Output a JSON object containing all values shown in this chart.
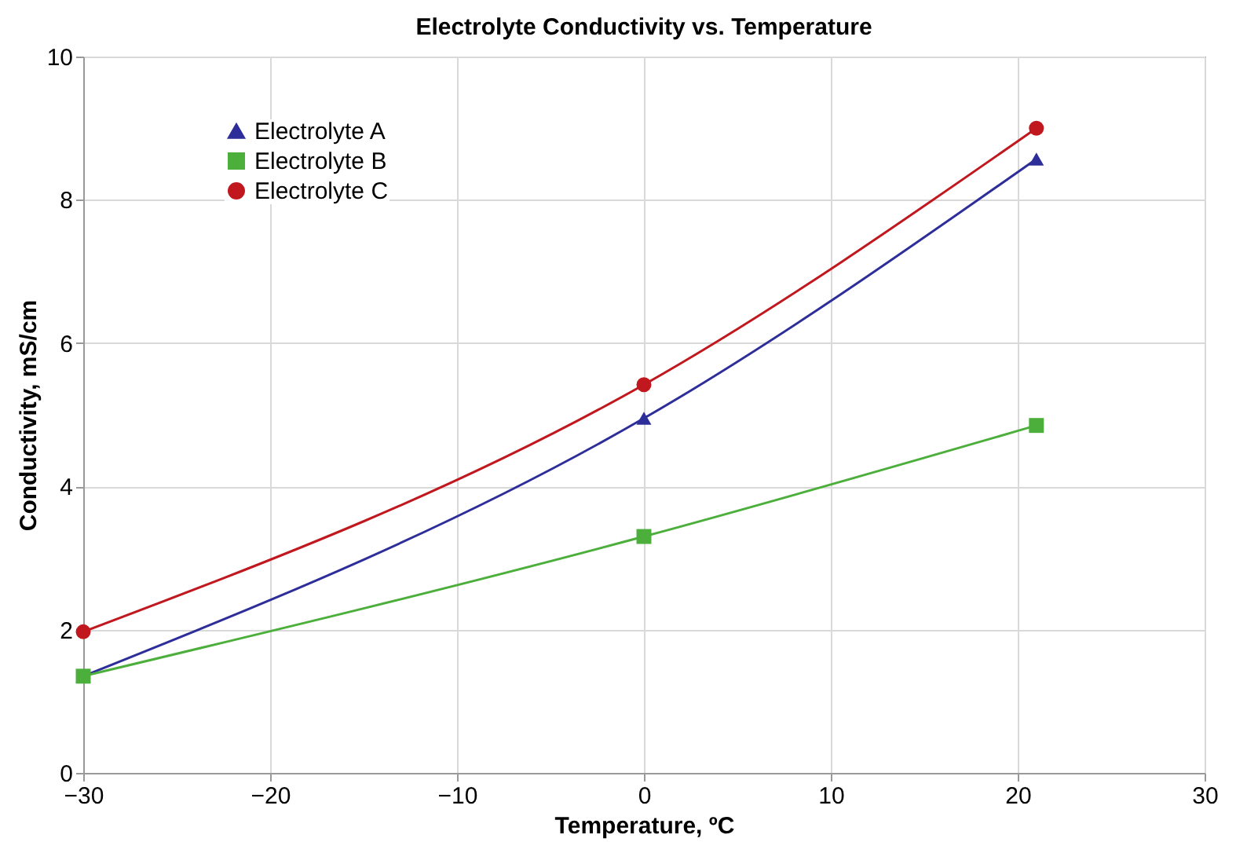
{
  "chart_data": {
    "type": "line",
    "title": "Electrolyte Conductivity vs. Temperature",
    "xlabel": "Temperature, ºC",
    "ylabel": "Conductivity, mS/cm",
    "x": [
      -30,
      0,
      21
    ],
    "series": [
      {
        "name": "Electrolyte A",
        "color": "#2e2e9a",
        "marker": "triangle",
        "values": [
          1.35,
          4.95,
          8.57
        ]
      },
      {
        "name": "Electrolyte B",
        "color": "#4caf3c",
        "marker": "square",
        "values": [
          1.35,
          3.3,
          4.85
        ]
      },
      {
        "name": "Electrolyte C",
        "color": "#c0181e",
        "marker": "circle",
        "values": [
          1.97,
          5.42,
          9.0
        ]
      }
    ],
    "xlim": [
      -30,
      30
    ],
    "xticks": [
      -30,
      -20,
      -10,
      0,
      10,
      20,
      30
    ],
    "ylim": [
      0,
      10
    ],
    "yticks": [
      0,
      2,
      4,
      6,
      8,
      10
    ],
    "grid": true,
    "legend": "top left",
    "line_style": "solid"
  }
}
